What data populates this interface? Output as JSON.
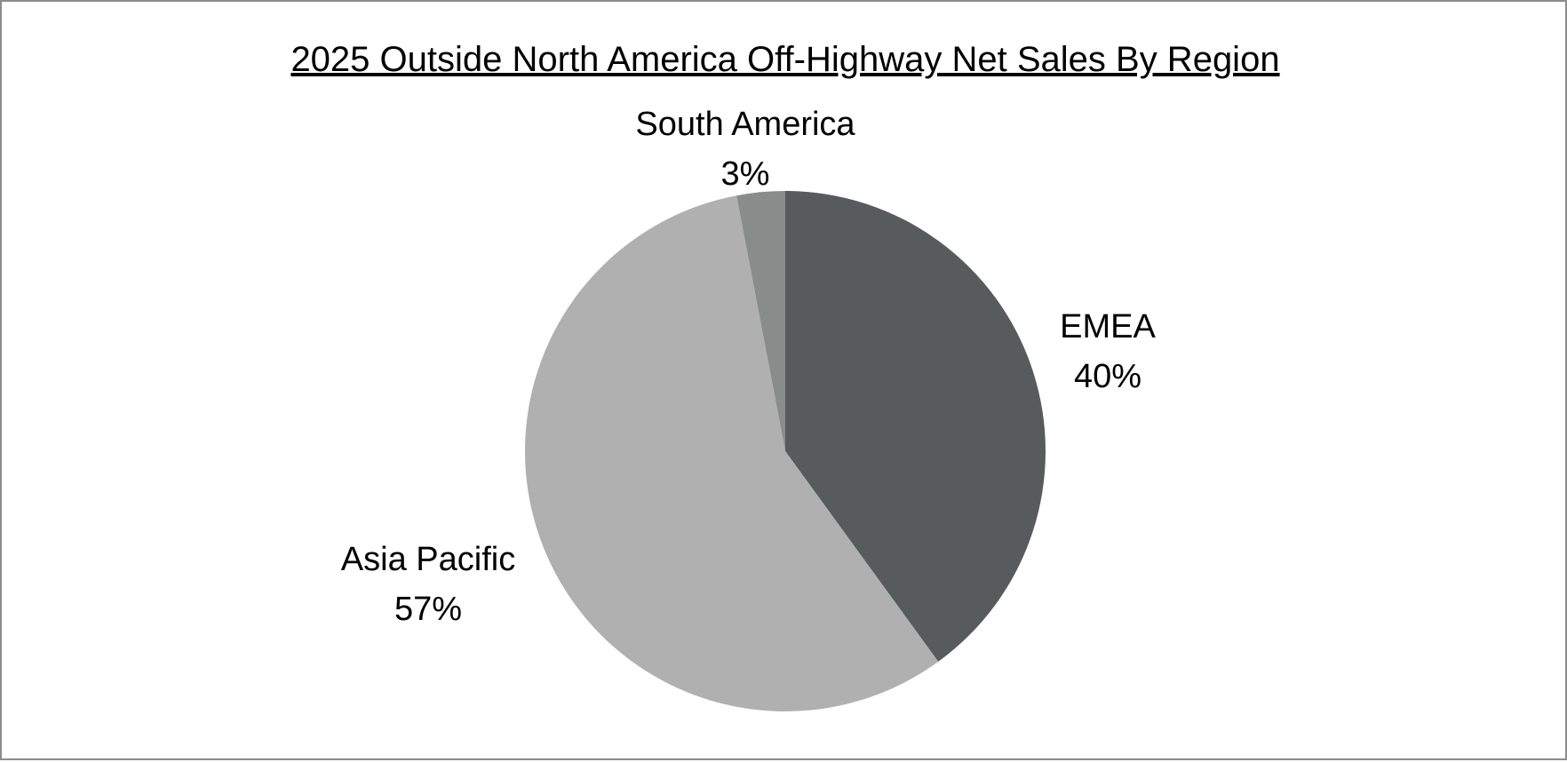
{
  "chart_data": {
    "type": "pie",
    "title": "2025 Outside North America Off-Highway Net Sales By Region",
    "unit": "%",
    "start_angle_deg": 0,
    "direction": "clockwise",
    "slices": [
      {
        "label": "EMEA",
        "value": 40,
        "value_label": "40%",
        "color": "#585b5c"
      },
      {
        "label": "Asia Pacific",
        "value": 57,
        "value_label": "57%",
        "color": "#b0b0b0"
      },
      {
        "label": "South America",
        "value": 3,
        "value_label": "3%",
        "color": "#8a8c8c"
      }
    ],
    "legend": "none",
    "data_labels": "outside"
  }
}
